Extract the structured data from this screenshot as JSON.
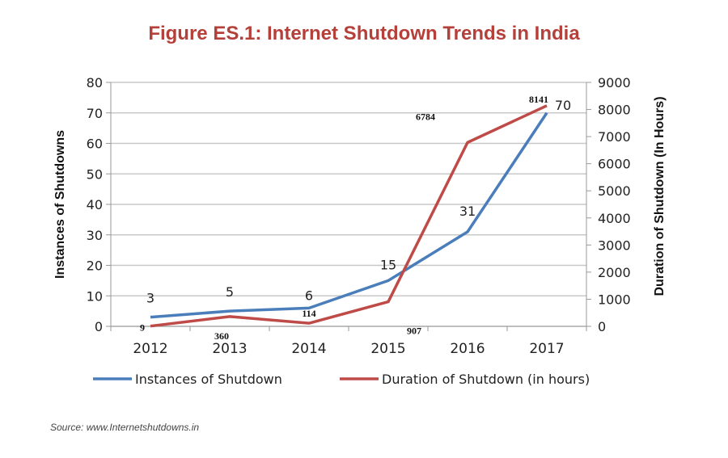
{
  "title": "Figure ES.1: Internet Shutdown Trends in India",
  "source": "Source:  www.Internetshutdowns.in",
  "chart_data": {
    "type": "line",
    "categories": [
      "2012",
      "2013",
      "2014",
      "2015",
      "2016",
      "2017"
    ],
    "series": [
      {
        "name": "Instances of Shutdown",
        "axis": "left",
        "color": "#4a7ebb",
        "values": [
          3,
          5,
          6,
          15,
          31,
          70
        ],
        "labels": [
          "3",
          "5",
          "6",
          "15",
          "31",
          "70"
        ]
      },
      {
        "name": "Duration of Shutdown (in hours)",
        "axis": "right",
        "color": "#be4b48",
        "values": [
          9,
          360,
          114,
          907,
          6784,
          8141
        ],
        "labels": [
          "9",
          "360",
          "114",
          "907",
          "6784",
          "8141"
        ]
      }
    ],
    "ylabel": "Instances of Shutdowns",
    "y2label": "Duration of Shutdown (In Hours)",
    "ylim": [
      0,
      80
    ],
    "yticks": [
      "0",
      "10",
      "20",
      "30",
      "40",
      "50",
      "60",
      "70",
      "80"
    ],
    "y2lim": [
      0,
      9000
    ],
    "y2ticks": [
      "0",
      "1000",
      "2000",
      "3000",
      "4000",
      "5000",
      "6000",
      "7000",
      "8000",
      "9000"
    ],
    "grid": true,
    "legend": "bottom"
  }
}
